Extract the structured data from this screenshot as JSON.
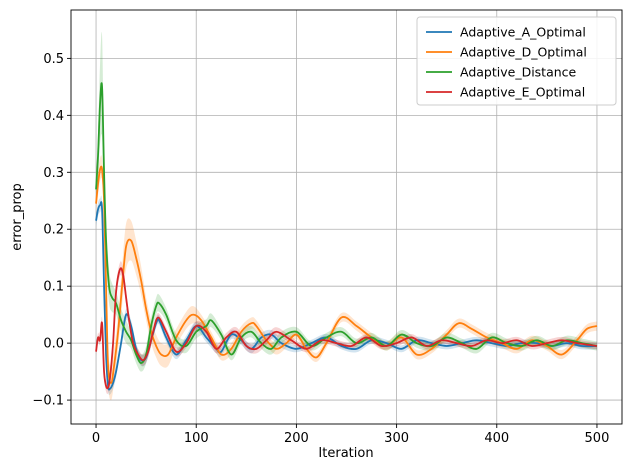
{
  "chart_data": {
    "type": "line",
    "xlabel": "Iteration",
    "ylabel": "error_prop",
    "xlim": [
      -25,
      525
    ],
    "ylim": [
      -0.142,
      0.585
    ],
    "xticks": [
      0,
      100,
      200,
      300,
      400,
      500
    ],
    "yticks": [
      -0.1,
      0.0,
      0.1,
      0.2,
      0.3,
      0.4,
      0.5
    ],
    "xtick_labels": [
      "0",
      "100",
      "200",
      "300",
      "400",
      "500"
    ],
    "ytick_labels": [
      "−0.1",
      "0.0",
      "0.1",
      "0.2",
      "0.3",
      "0.4",
      "0.5"
    ],
    "grid": true,
    "legend_position": "upper-right",
    "series": [
      {
        "name": "Adaptive_A_Optimal",
        "color": "#1f77b4",
        "x": [
          0,
          2,
          4,
          6,
          8,
          10,
          12,
          14,
          17,
          20,
          25,
          30,
          35,
          40,
          45,
          50,
          55,
          60,
          63,
          70,
          80,
          90,
          100,
          110,
          120,
          125,
          135,
          145,
          155,
          165,
          175,
          185,
          200,
          215,
          230,
          245,
          260,
          275,
          290,
          305,
          320,
          335,
          350,
          365,
          380,
          395,
          410,
          425,
          440,
          455,
          470,
          485,
          500
        ],
        "y": [
          0.215,
          0.235,
          0.242,
          0.235,
          0.1,
          -0.02,
          -0.075,
          -0.08,
          -0.07,
          -0.05,
          0.0,
          0.05,
          0.03,
          -0.01,
          -0.03,
          -0.025,
          0.005,
          0.035,
          0.04,
          0.01,
          -0.02,
          0.005,
          0.03,
          0.01,
          -0.01,
          -0.015,
          0.015,
          0.005,
          -0.01,
          0.01,
          0.015,
          0.0,
          -0.01,
          0.0,
          0.01,
          -0.005,
          -0.01,
          0.005,
          0.0,
          -0.01,
          0.005,
          0.0,
          -0.005,
          0.0,
          0.005,
          0.0,
          -0.005,
          0.0,
          0.0,
          -0.005,
          0.0,
          -0.005,
          -0.005
        ],
        "band": [
          0.01,
          0.012,
          0.012,
          0.012,
          0.02,
          0.02,
          0.01,
          0.01,
          0.01,
          0.01,
          0.01,
          0.01,
          0.01,
          0.01,
          0.01,
          0.01,
          0.01,
          0.008,
          0.008,
          0.008,
          0.008,
          0.008,
          0.008,
          0.008,
          0.008,
          0.008,
          0.008,
          0.008,
          0.008,
          0.008,
          0.008,
          0.008,
          0.006,
          0.006,
          0.006,
          0.006,
          0.006,
          0.006,
          0.006,
          0.006,
          0.006,
          0.006,
          0.006,
          0.006,
          0.006,
          0.006,
          0.006,
          0.006,
          0.006,
          0.006,
          0.006,
          0.006,
          0.006
        ]
      },
      {
        "name": "Adaptive_D_Optimal",
        "color": "#ff7f0e",
        "x": [
          0,
          2,
          4,
          6,
          8,
          10,
          12,
          15,
          18,
          22,
          26,
          30,
          35,
          40,
          45,
          50,
          55,
          60,
          65,
          72,
          80,
          90,
          97,
          105,
          115,
          125,
          135,
          145,
          155,
          160,
          170,
          180,
          190,
          200,
          210,
          220,
          230,
          245,
          260,
          275,
          290,
          305,
          320,
          335,
          350,
          362,
          375,
          390,
          405,
          420,
          435,
          450,
          465,
          480,
          490,
          500
        ],
        "y": [
          0.245,
          0.28,
          0.305,
          0.305,
          0.25,
          0.1,
          -0.04,
          -0.07,
          -0.04,
          0.02,
          0.1,
          0.17,
          0.18,
          0.15,
          0.11,
          0.06,
          0.02,
          -0.005,
          -0.02,
          -0.02,
          0.01,
          0.04,
          0.05,
          0.04,
          0.01,
          -0.02,
          -0.01,
          0.02,
          0.035,
          0.03,
          0.005,
          -0.01,
          0.0,
          0.015,
          -0.01,
          -0.025,
          0.0,
          0.045,
          0.03,
          0.01,
          -0.005,
          0.01,
          -0.02,
          -0.01,
          0.015,
          0.035,
          0.025,
          0.01,
          0.0,
          -0.01,
          0.005,
          -0.005,
          -0.02,
          0.005,
          0.025,
          0.03
        ],
        "band": [
          0.015,
          0.02,
          0.02,
          0.02,
          0.02,
          0.03,
          0.03,
          0.03,
          0.03,
          0.03,
          0.035,
          0.04,
          0.035,
          0.03,
          0.025,
          0.02,
          0.02,
          0.02,
          0.02,
          0.02,
          0.015,
          0.015,
          0.015,
          0.01,
          0.01,
          0.01,
          0.01,
          0.01,
          0.01,
          0.01,
          0.01,
          0.01,
          0.008,
          0.008,
          0.008,
          0.008,
          0.008,
          0.008,
          0.008,
          0.008,
          0.008,
          0.008,
          0.008,
          0.008,
          0.008,
          0.008,
          0.008,
          0.008,
          0.008,
          0.008,
          0.008,
          0.008,
          0.008,
          0.008,
          0.008,
          0.008
        ]
      },
      {
        "name": "Adaptive_Distance",
        "color": "#2ca02c",
        "x": [
          0,
          2,
          4,
          6,
          8,
          10,
          13,
          16,
          20,
          25,
          30,
          35,
          40,
          45,
          50,
          55,
          60,
          63,
          70,
          80,
          90,
          100,
          110,
          115,
          125,
          135,
          145,
          155,
          165,
          175,
          185,
          200,
          215,
          230,
          245,
          260,
          275,
          290,
          305,
          320,
          335,
          350,
          365,
          380,
          395,
          410,
          425,
          440,
          455,
          470,
          485,
          500
        ],
        "y": [
          0.27,
          0.33,
          0.42,
          0.45,
          0.3,
          0.18,
          0.1,
          0.08,
          0.07,
          0.04,
          0.02,
          0.005,
          -0.02,
          -0.035,
          -0.02,
          0.03,
          0.065,
          0.07,
          0.05,
          0.005,
          -0.005,
          0.02,
          0.03,
          0.04,
          0.015,
          -0.02,
          0.01,
          0.02,
          0.0,
          -0.01,
          0.01,
          0.02,
          -0.005,
          0.01,
          0.02,
          0.0,
          0.01,
          -0.005,
          0.015,
          0.0,
          -0.005,
          0.01,
          0.0,
          -0.01,
          0.01,
          0.0,
          -0.005,
          0.005,
          -0.005,
          0.005,
          0.0,
          -0.005
        ],
        "band": [
          0.02,
          0.04,
          0.07,
          0.09,
          0.05,
          0.04,
          0.03,
          0.025,
          0.02,
          0.02,
          0.02,
          0.015,
          0.015,
          0.015,
          0.015,
          0.015,
          0.015,
          0.015,
          0.012,
          0.012,
          0.012,
          0.012,
          0.012,
          0.012,
          0.01,
          0.01,
          0.01,
          0.01,
          0.01,
          0.01,
          0.01,
          0.008,
          0.008,
          0.008,
          0.008,
          0.008,
          0.008,
          0.008,
          0.008,
          0.008,
          0.008,
          0.008,
          0.008,
          0.008,
          0.008,
          0.008,
          0.008,
          0.008,
          0.008,
          0.008,
          0.008,
          0.008
        ]
      },
      {
        "name": "Adaptive_E_Optimal",
        "color": "#d62728",
        "x": [
          0,
          2,
          4,
          6,
          8,
          10,
          12,
          14,
          17,
          20,
          24,
          27,
          30,
          33,
          37,
          42,
          47,
          52,
          57,
          62,
          70,
          80,
          90,
          100,
          110,
          120,
          130,
          140,
          150,
          160,
          170,
          180,
          195,
          210,
          225,
          240,
          255,
          270,
          285,
          300,
          315,
          330,
          345,
          360,
          375,
          390,
          405,
          420,
          435,
          450,
          465,
          480,
          500
        ],
        "y": [
          -0.015,
          0.01,
          0.005,
          0.035,
          -0.05,
          -0.075,
          -0.078,
          -0.06,
          0.0,
          0.09,
          0.13,
          0.12,
          0.08,
          0.04,
          0.0,
          -0.02,
          -0.03,
          -0.015,
          0.02,
          0.045,
          0.02,
          -0.015,
          0.0,
          0.03,
          0.02,
          -0.01,
          0.01,
          0.02,
          -0.005,
          -0.01,
          0.005,
          0.02,
          0.005,
          -0.01,
          0.005,
          0.0,
          -0.005,
          0.01,
          -0.005,
          0.0,
          0.01,
          -0.005,
          0.005,
          0.0,
          -0.005,
          0.005,
          0.0,
          0.005,
          -0.005,
          0.0,
          0.005,
          0.0,
          -0.005
        ],
        "band": [
          0.008,
          0.008,
          0.008,
          0.01,
          0.01,
          0.01,
          0.01,
          0.01,
          0.012,
          0.012,
          0.012,
          0.012,
          0.012,
          0.01,
          0.01,
          0.01,
          0.01,
          0.01,
          0.01,
          0.008,
          0.008,
          0.008,
          0.008,
          0.008,
          0.008,
          0.008,
          0.008,
          0.008,
          0.008,
          0.008,
          0.008,
          0.008,
          0.006,
          0.006,
          0.006,
          0.006,
          0.006,
          0.006,
          0.006,
          0.006,
          0.006,
          0.006,
          0.006,
          0.006,
          0.006,
          0.006,
          0.006,
          0.006,
          0.006,
          0.006,
          0.006,
          0.006,
          0.006
        ]
      }
    ]
  }
}
